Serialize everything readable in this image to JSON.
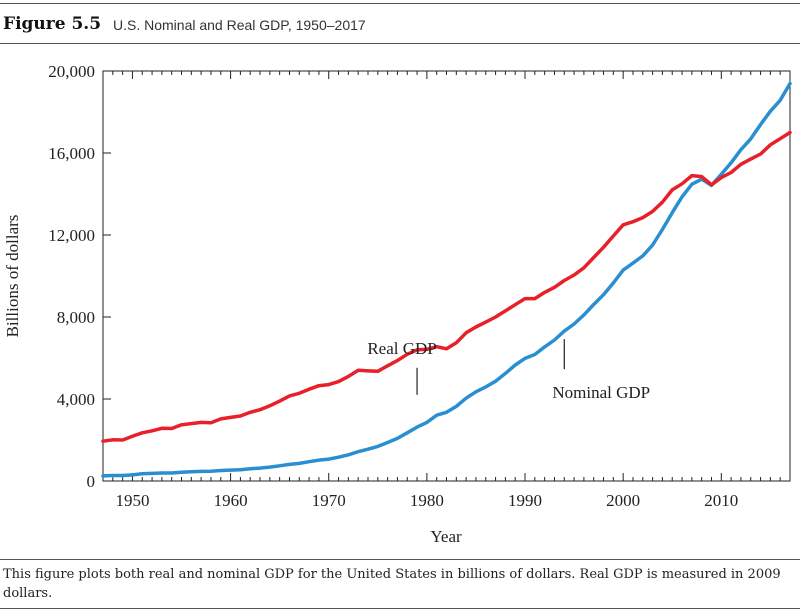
{
  "figure": {
    "label": "Figure 5.5",
    "title": "U.S. Nominal and Real GDP, 1950–2017",
    "caption": "This figure plots both real and nominal GDP for the United States in billions of dollars. Real GDP is measured in 2009 dollars."
  },
  "chart_data": {
    "type": "line",
    "xlabel": "Year",
    "ylabel": "Billions of dollars",
    "xlim": [
      1947,
      2017
    ],
    "ylim": [
      0,
      20000
    ],
    "x_ticks": [
      1950,
      1960,
      1970,
      1980,
      1990,
      2000,
      2010
    ],
    "y_ticks": [
      0,
      4000,
      8000,
      12000,
      16000,
      20000
    ],
    "y_tick_labels": [
      "0",
      "4,000",
      "8,000",
      "12,000",
      "16,000",
      "20,000"
    ],
    "grid": false,
    "x": [
      1947,
      1948,
      1949,
      1950,
      1951,
      1952,
      1953,
      1954,
      1955,
      1956,
      1957,
      1958,
      1959,
      1960,
      1961,
      1962,
      1963,
      1964,
      1965,
      1966,
      1967,
      1968,
      1969,
      1970,
      1971,
      1972,
      1973,
      1974,
      1975,
      1976,
      1977,
      1978,
      1979,
      1980,
      1981,
      1982,
      1983,
      1984,
      1985,
      1986,
      1987,
      1988,
      1989,
      1990,
      1991,
      1992,
      1993,
      1994,
      1995,
      1996,
      1997,
      1998,
      1999,
      2000,
      2001,
      2002,
      2003,
      2004,
      2005,
      2006,
      2007,
      2008,
      2009,
      2010,
      2011,
      2012,
      2013,
      2014,
      2015,
      2016,
      2017
    ],
    "series": [
      {
        "name": "Real GDP",
        "color": "#e8202a",
        "values": [
          1940,
          2010,
          2000,
          2180,
          2350,
          2450,
          2570,
          2560,
          2740,
          2800,
          2860,
          2840,
          3030,
          3100,
          3170,
          3350,
          3480,
          3670,
          3900,
          4150,
          4280,
          4480,
          4650,
          4700,
          4850,
          5100,
          5400,
          5370,
          5350,
          5620,
          5880,
          6180,
          6400,
          6420,
          6550,
          6450,
          6740,
          7230,
          7510,
          7750,
          8000,
          8300,
          8600,
          8900,
          8900,
          9200,
          9450,
          9780,
          10050,
          10400,
          10900,
          11400,
          11950,
          12500,
          12650,
          12850,
          13150,
          13600,
          14200,
          14500,
          14900,
          14850,
          14450,
          14800,
          15050,
          15450,
          15700,
          15950,
          16400,
          16700,
          17000
        ]
      },
      {
        "name": "Nominal GDP",
        "color": "#2a8fd0",
        "values": [
          250,
          270,
          270,
          300,
          350,
          370,
          390,
          390,
          430,
          450,
          470,
          480,
          510,
          530,
          550,
          600,
          630,
          680,
          740,
          810,
          860,
          940,
          1020,
          1070,
          1160,
          1280,
          1430,
          1550,
          1690,
          1880,
          2080,
          2350,
          2630,
          2860,
          3210,
          3350,
          3640,
          4040,
          4350,
          4590,
          4870,
          5250,
          5660,
          5980,
          6170,
          6540,
          6880,
          7310,
          7660,
          8100,
          8610,
          9090,
          9660,
          10290,
          10630,
          10980,
          11510,
          12270,
          13090,
          13860,
          14480,
          14720,
          14420,
          14960,
          15520,
          16160,
          16690,
          17390,
          18040,
          18570,
          19390
        ]
      }
    ],
    "annotations": [
      {
        "text": "Real GDP",
        "year": 1979,
        "series": "Real GDP"
      },
      {
        "text": "Nominal GDP",
        "year": 1994,
        "series": "Nominal GDP"
      }
    ]
  }
}
